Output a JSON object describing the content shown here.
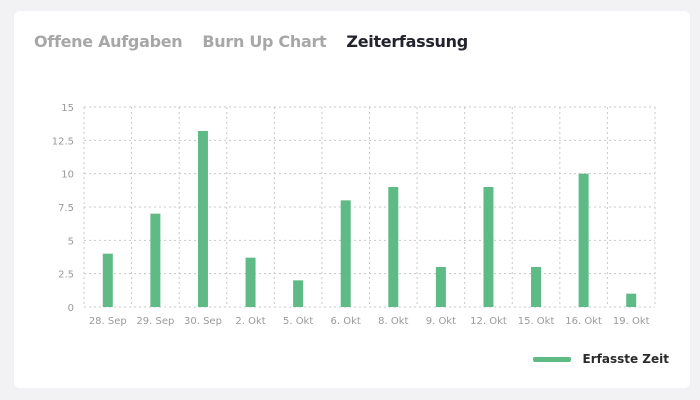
{
  "tabs": [
    {
      "label": "Offene Aufgaben",
      "active": false
    },
    {
      "label": "Burn Up Chart",
      "active": false
    },
    {
      "label": "Zeiterfassung",
      "active": true
    }
  ],
  "colors": {
    "bar": "#5fbb85",
    "grid": "#c8c8c8",
    "tick_text": "#9a9a9a"
  },
  "chart_data": {
    "type": "bar",
    "categories": [
      "28. Sep",
      "29. Sep",
      "30. Sep",
      "2. Okt",
      "5. Okt",
      "6. Okt",
      "8. Okt",
      "9. Okt",
      "12. Okt",
      "15. Okt",
      "16. Okt",
      "19. Okt"
    ],
    "series": [
      {
        "name": "Erfasste Zeit",
        "values": [
          4,
          7,
          13.2,
          3.7,
          2,
          8,
          9,
          3,
          9,
          3,
          10,
          1
        ]
      }
    ],
    "yticks": [
      "0",
      "2.5",
      "5",
      "7.5",
      "10",
      "12.5",
      "15"
    ],
    "ylim": [
      0,
      15
    ],
    "grid": true,
    "legend_position": "bottom-right"
  }
}
